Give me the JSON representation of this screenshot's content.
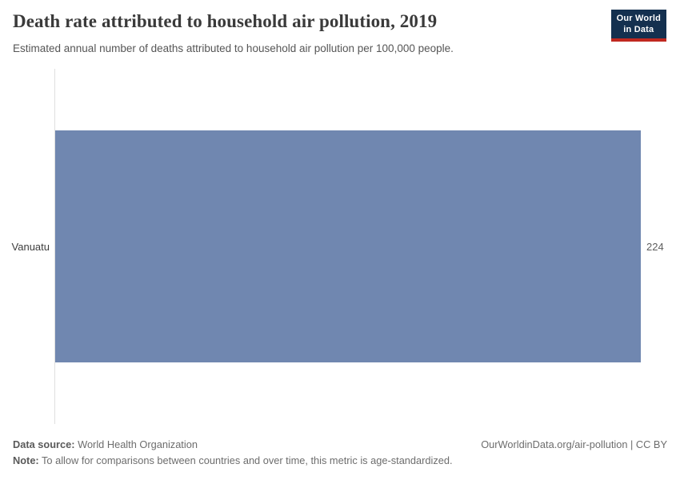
{
  "header": {
    "title": "Death rate attributed to household air pollution, 2019",
    "subtitle": "Estimated annual number of deaths attributed to household air pollution per 100,000 people."
  },
  "logo": {
    "line1": "Our World",
    "line2": "in Data"
  },
  "chart_data": {
    "type": "bar",
    "orientation": "horizontal",
    "title": "Death rate attributed to household air pollution, 2019",
    "categories": [
      "Vanuatu"
    ],
    "values": [
      224
    ],
    "xlabel": "",
    "ylabel": "",
    "xlim": [
      0,
      224
    ],
    "grid": false,
    "legend": "none",
    "bar_color": "#7087b0"
  },
  "footer": {
    "data_source_label": "Data source:",
    "data_source_value": "World Health Organization",
    "attribution": "OurWorldinData.org/air-pollution | CC BY",
    "note_label": "Note:",
    "note_value": "To allow for comparisons between countries and over time, this metric is age-standardized."
  },
  "colors": {
    "bar": "#7087b0",
    "logo_navy": "#14304f",
    "logo_red": "#c0281f",
    "axis_line": "#dfdfdf"
  }
}
